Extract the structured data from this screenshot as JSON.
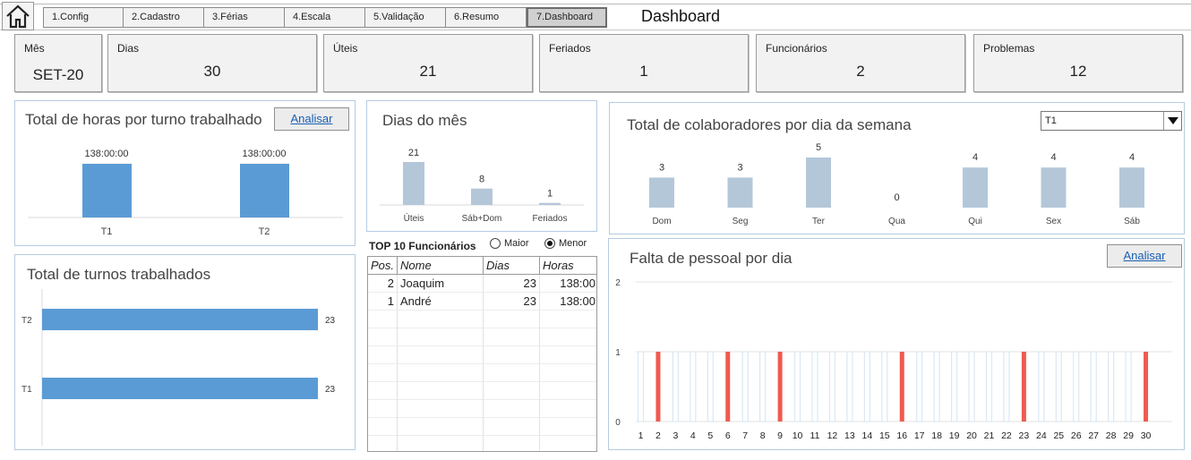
{
  "nav": {
    "tabs": [
      {
        "label": "1.Config",
        "active": false
      },
      {
        "label": "2.Cadastro",
        "active": false
      },
      {
        "label": "3.Férias",
        "active": false
      },
      {
        "label": "4.Escala",
        "active": false
      },
      {
        "label": "5.Validação",
        "active": false
      },
      {
        "label": "6.Resumo",
        "active": false
      },
      {
        "label": "7.Dashboard",
        "active": true
      }
    ],
    "page_title": "Dashboard",
    "home_icon": "home-icon"
  },
  "kpis": {
    "month": {
      "label": "Mês",
      "value": "SET-20"
    },
    "days": {
      "label": "Dias",
      "value": "30"
    },
    "workdays": {
      "label": "Úteis",
      "value": "21"
    },
    "holidays": {
      "label": "Feriados",
      "value": "1"
    },
    "employees": {
      "label": "Funcionários",
      "value": "2"
    },
    "problems": {
      "label": "Problemas",
      "value": "12"
    }
  },
  "colors": {
    "bar_blue": "#5b9bd5",
    "bar_gray_blue": "#b4c7d9",
    "bar_red": "#f05a4f",
    "bar_light": "#dae8f3"
  },
  "hours_panel": {
    "title": "Total de horas por turno trabalhado",
    "button": "Analisar"
  },
  "shifts_panel": {
    "title": "Total de turnos trabalhados"
  },
  "days_panel": {
    "title": "Dias do mês"
  },
  "weekday_panel": {
    "title": "Total de colaboradores por dia da semana",
    "dropdown_value": "T1"
  },
  "shortage_panel": {
    "title": "Falta de pessoal por dia",
    "button": "Analisar"
  },
  "top10": {
    "title": "TOP 10 Funcionários",
    "options": [
      {
        "label": "Maior",
        "selected": false
      },
      {
        "label": "Menor",
        "selected": true
      }
    ],
    "headers": [
      "Pos.",
      "Nome",
      "Dias",
      "Horas"
    ],
    "rows": [
      [
        "2",
        "Joaquim",
        "23",
        "138:00"
      ],
      [
        "1",
        "André",
        "23",
        "138:00"
      ]
    ]
  },
  "chart_data": [
    {
      "type": "bar",
      "title": "Total de horas por turno trabalhado",
      "categories": [
        "T1",
        "T2"
      ],
      "values": [
        138,
        138
      ],
      "data_labels": [
        "138:00:00",
        "138:00:00"
      ]
    },
    {
      "type": "bar",
      "orientation": "horizontal",
      "title": "Total de turnos trabalhados",
      "categories": [
        "T2",
        "T1"
      ],
      "values": [
        23,
        23
      ]
    },
    {
      "type": "bar",
      "title": "Dias do mês",
      "categories": [
        "Úteis",
        "Sáb+Dom",
        "Feriados"
      ],
      "values": [
        21,
        8,
        1
      ]
    },
    {
      "type": "bar",
      "title": "Total de colaboradores por dia da semana",
      "categories": [
        "Dom",
        "Seg",
        "Ter",
        "Qua",
        "Qui",
        "Sex",
        "Sáb"
      ],
      "values": [
        3,
        3,
        5,
        0,
        4,
        4,
        4
      ]
    },
    {
      "type": "bar",
      "title": "Falta de pessoal por dia",
      "x": [
        1,
        2,
        3,
        4,
        5,
        6,
        7,
        8,
        9,
        10,
        11,
        12,
        13,
        14,
        15,
        16,
        17,
        18,
        19,
        20,
        21,
        22,
        23,
        24,
        25,
        26,
        27,
        28,
        29,
        30
      ],
      "values": [
        1,
        1,
        1,
        1,
        1,
        1,
        1,
        1,
        1,
        1,
        1,
        1,
        1,
        1,
        1,
        1,
        1,
        1,
        1,
        1,
        1,
        1,
        1,
        1,
        1,
        1,
        1,
        1,
        1,
        1
      ],
      "highlighted_days": [
        2,
        6,
        9,
        16,
        23,
        30
      ],
      "yticks": [
        "0",
        "1",
        "2"
      ],
      "ylim": [
        0,
        2
      ],
      "grid": true
    }
  ]
}
